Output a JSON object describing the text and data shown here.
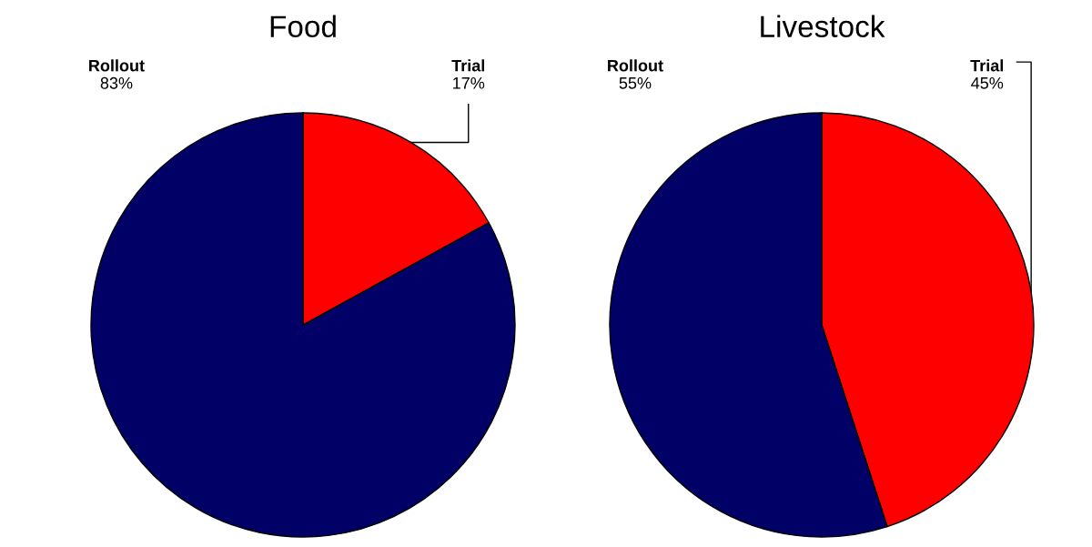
{
  "chart_data": [
    {
      "type": "pie",
      "title": "Food",
      "categories": [
        "Trial",
        "Rollout"
      ],
      "values": [
        17,
        83
      ],
      "colors": [
        "#ff0000",
        "#000066"
      ],
      "value_labels": [
        "17%",
        "83%"
      ]
    },
    {
      "type": "pie",
      "title": "Livestock",
      "categories": [
        "Trial",
        "Rollout"
      ],
      "values": [
        45,
        55
      ],
      "colors": [
        "#ff0000",
        "#000066"
      ],
      "value_labels": [
        "45%",
        "55%"
      ]
    }
  ]
}
